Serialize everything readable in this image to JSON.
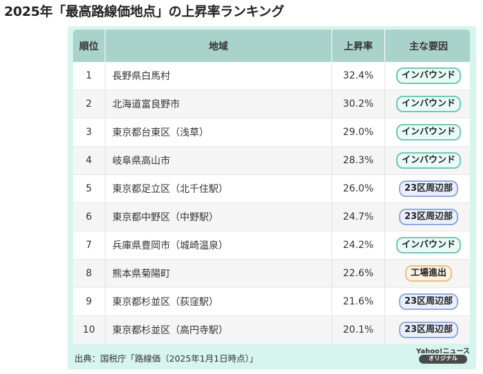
{
  "title": "2025年「最高路線価地点」の上昇率ランキング",
  "colors": {
    "card_bg": "#d6f5ef",
    "header_bg": "#a9d2cb",
    "inbound_bg": "#e9fbf6",
    "inbound_border": "#70c6b3",
    "suburb_bg": "#eaf0fb",
    "suburb_border": "#8fa9e0",
    "factory_bg": "#fdf3e0",
    "factory_border": "#e9c07e"
  },
  "chart_data": {
    "type": "table",
    "columns": [
      "順位",
      "地域",
      "上昇率",
      "主な要因"
    ],
    "rows": [
      {
        "rank": "1",
        "region": "長野県白馬村",
        "rate": "32.4%",
        "factor": "インバウンド",
        "factor_type": "inbound"
      },
      {
        "rank": "2",
        "region": "北海道富良野市",
        "rate": "30.2%",
        "factor": "インバウンド",
        "factor_type": "inbound"
      },
      {
        "rank": "3",
        "region": "東京都台東区（浅草）",
        "rate": "29.0%",
        "factor": "インバウンド",
        "factor_type": "inbound"
      },
      {
        "rank": "4",
        "region": "岐阜県高山市",
        "rate": "28.3%",
        "factor": "インバウンド",
        "factor_type": "inbound"
      },
      {
        "rank": "5",
        "region": "東京都足立区（北千住駅）",
        "rate": "26.0%",
        "factor": "23区周辺部",
        "factor_type": "suburb"
      },
      {
        "rank": "6",
        "region": "東京都中野区（中野駅）",
        "rate": "24.7%",
        "factor": "23区周辺部",
        "factor_type": "suburb"
      },
      {
        "rank": "7",
        "region": "兵庫県豊岡市（城崎温泉）",
        "rate": "24.2%",
        "factor": "インバウンド",
        "factor_type": "inbound"
      },
      {
        "rank": "8",
        "region": "熊本県菊陽町",
        "rate": "22.6%",
        "factor": "工場進出",
        "factor_type": "factory"
      },
      {
        "rank": "9",
        "region": "東京都杉並区（荻窪駅）",
        "rate": "21.6%",
        "factor": "23区周辺部",
        "factor_type": "suburb"
      },
      {
        "rank": "10",
        "region": "東京都杉並区（高円寺駅）",
        "rate": "20.1%",
        "factor": "23区周辺部",
        "factor_type": "suburb"
      }
    ]
  },
  "source": "出典：国税庁「路線価（2025年1月1日時点）」",
  "logo": {
    "top": "Yahoo!ニュース",
    "bottom": "オリジナル"
  }
}
